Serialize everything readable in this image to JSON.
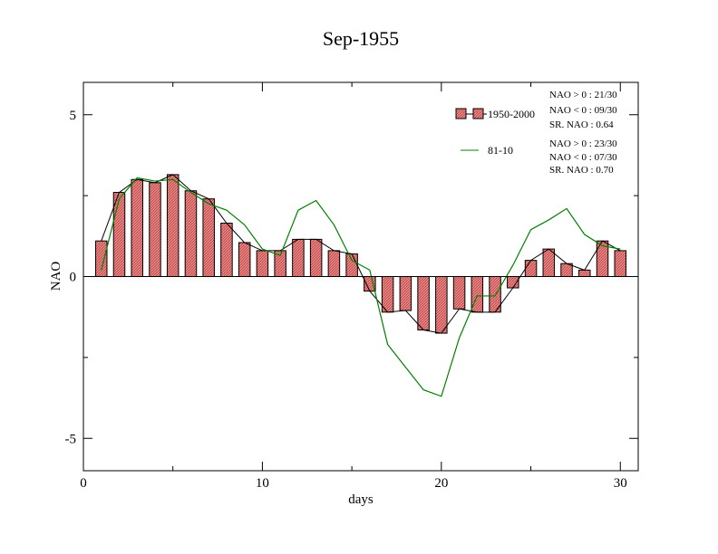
{
  "chart_data": {
    "type": "bar",
    "title": "Sep-1955",
    "xlabel": "days",
    "ylabel": "NAO",
    "xlim": [
      0,
      31
    ],
    "ylim": [
      -6,
      6
    ],
    "x_ticks": [
      0,
      10,
      20,
      30
    ],
    "y_ticks": [
      -5,
      0,
      5
    ],
    "grid": false,
    "legend_position": "top-right",
    "x": [
      1,
      2,
      3,
      4,
      5,
      6,
      7,
      8,
      9,
      10,
      11,
      12,
      13,
      14,
      15,
      16,
      17,
      18,
      19,
      20,
      21,
      22,
      23,
      24,
      25,
      26,
      27,
      28,
      29,
      30
    ],
    "series": [
      {
        "name": "1950-2000",
        "kind": "bar+line",
        "color": "#f08080",
        "values": [
          1.1,
          2.6,
          3.0,
          2.9,
          3.15,
          2.65,
          2.4,
          1.65,
          1.05,
          0.8,
          0.8,
          1.15,
          1.15,
          0.8,
          0.7,
          -0.45,
          -1.1,
          -1.05,
          -1.65,
          -1.75,
          -1.0,
          -1.1,
          -1.1,
          -0.35,
          0.5,
          0.85,
          0.4,
          0.2,
          1.1,
          0.8
        ]
      },
      {
        "name": "81-10",
        "kind": "line",
        "color": "#008000",
        "values": [
          0.2,
          2.4,
          3.05,
          2.95,
          3.0,
          2.6,
          2.25,
          2.05,
          1.6,
          0.85,
          0.65,
          2.05,
          2.35,
          1.6,
          0.5,
          0.2,
          -2.1,
          -2.8,
          -3.5,
          -3.7,
          -1.9,
          -0.6,
          -0.6,
          0.35,
          1.45,
          1.75,
          2.1,
          1.3,
          0.95,
          0.85
        ]
      }
    ],
    "stats": [
      {
        "nao_pos": "NAO > 0 : 21/30",
        "nao_neg": "NAO < 0 : 09/30",
        "sr": "SR. NAO :  0.64"
      },
      {
        "nao_pos": "NAO > 0 : 23/30",
        "nao_neg": "NAO < 0 : 07/30",
        "sr": "SR. NAO :  0.70"
      }
    ]
  }
}
